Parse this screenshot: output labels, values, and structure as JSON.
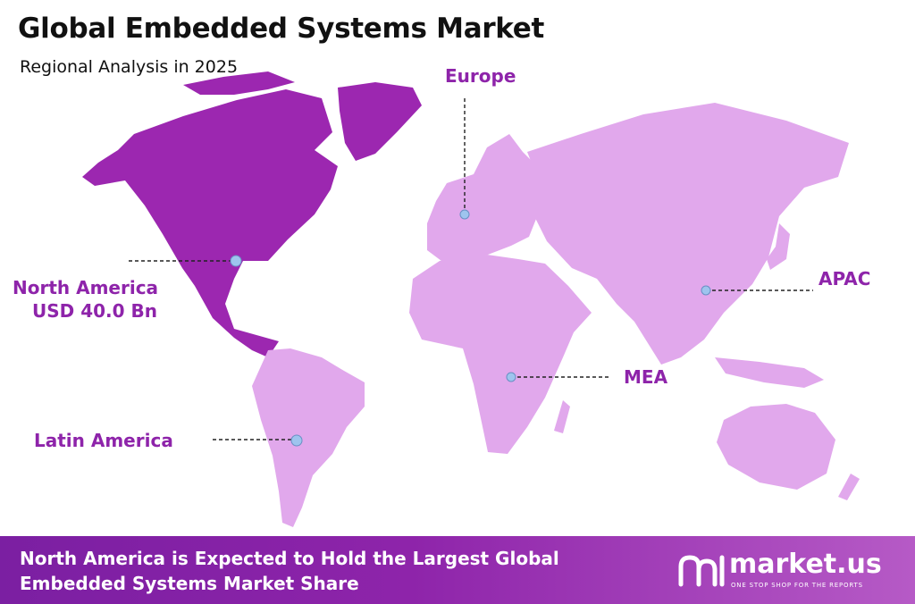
{
  "title": "Global Embedded Systems Market",
  "subtitle": "Regional Analysis in 2025",
  "colors": {
    "highlight_region": "#9c27b0",
    "other_regions": "#e1a8ec",
    "label_text": "#8e24aa",
    "marker": "#9ec4ee",
    "footer_bg": "#8e24aa"
  },
  "regions": {
    "north_america": {
      "name": "North America",
      "value": "USD 40.0 Bn"
    },
    "europe": {
      "name": "Europe"
    },
    "apac": {
      "name": "APAC"
    },
    "mea": {
      "name": "MEA"
    },
    "latin_america": {
      "name": "Latin America"
    }
  },
  "footer": {
    "line1": "North America is Expected to Hold the Largest Global",
    "line2": "Embedded Systems Market Share"
  },
  "brand": {
    "name": "market.us",
    "tagline": "ONE STOP SHOP FOR THE REPORTS"
  }
}
